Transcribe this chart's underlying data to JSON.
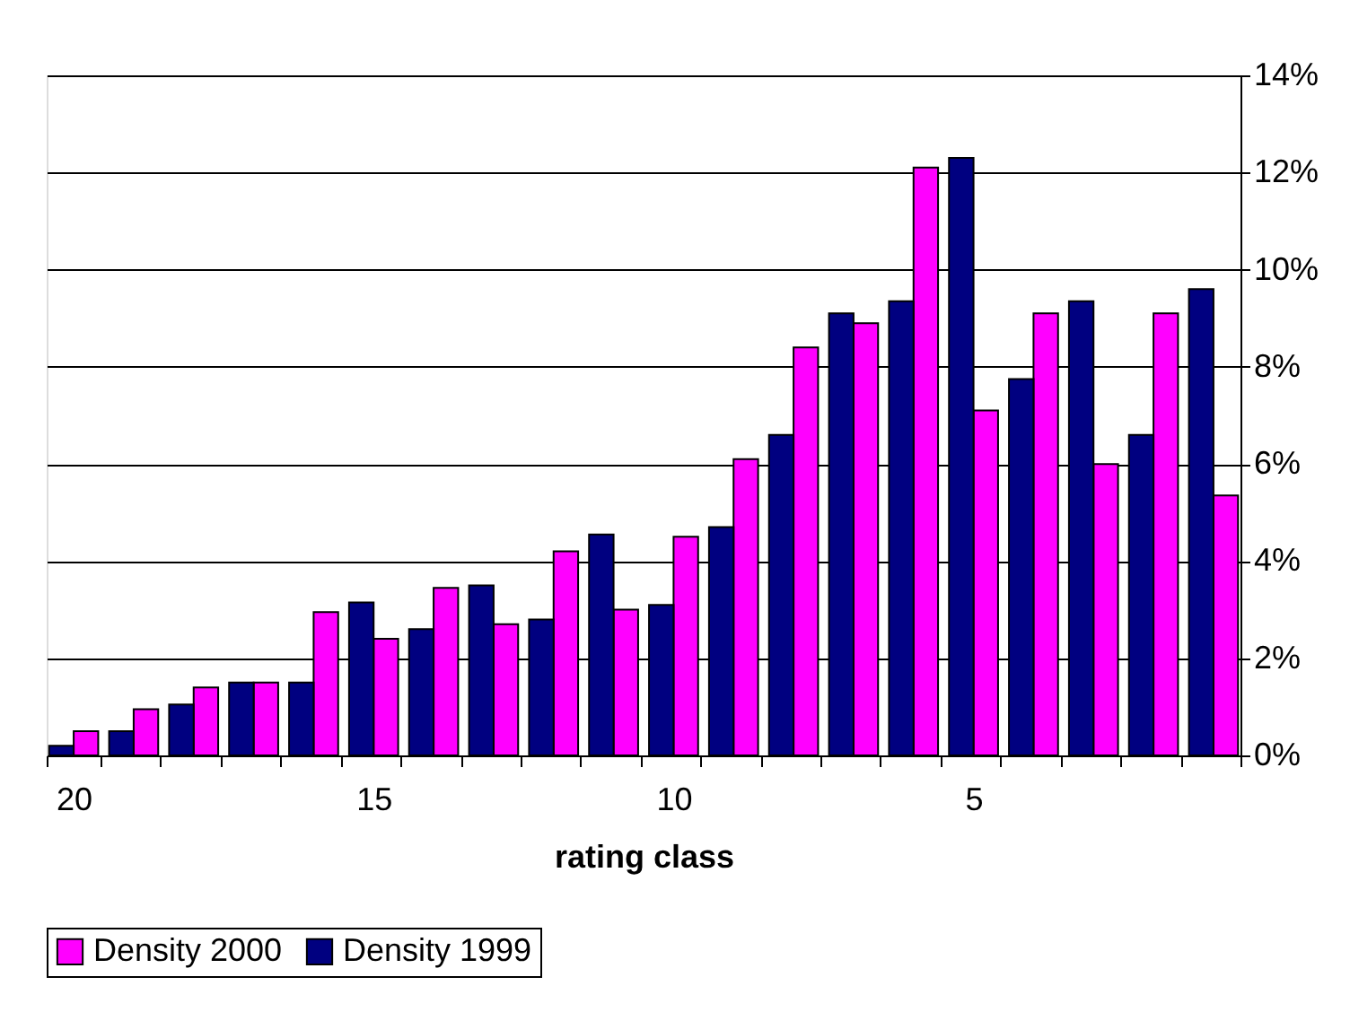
{
  "chart_data": {
    "type": "bar",
    "xlabel": "rating class",
    "categories": [
      "20",
      null,
      null,
      null,
      null,
      "15",
      null,
      null,
      null,
      null,
      "10",
      null,
      null,
      null,
      null,
      "5",
      null,
      null,
      null,
      null
    ],
    "series": [
      {
        "name": "Density 2000",
        "color": "#ff00ff",
        "values": [
          0.5,
          0.95,
          1.4,
          1.5,
          2.95,
          2.4,
          3.45,
          2.7,
          4.2,
          3.0,
          4.5,
          6.1,
          8.4,
          8.9,
          12.1,
          7.1,
          9.1,
          6.0,
          9.1,
          5.35
        ]
      },
      {
        "name": "Density 1999",
        "color": "#000080",
        "values": [
          0.2,
          0.5,
          1.05,
          1.5,
          1.5,
          3.15,
          2.6,
          3.5,
          2.8,
          4.55,
          3.1,
          4.7,
          6.6,
          9.1,
          9.35,
          12.3,
          7.75,
          9.35,
          6.6,
          9.6
        ]
      }
    ],
    "ylim": [
      0,
      14
    ],
    "yticks": [
      {
        "value": 0,
        "label": "0%"
      },
      {
        "value": 2,
        "label": "2%"
      },
      {
        "value": 4,
        "label": "4%"
      },
      {
        "value": 6,
        "label": "6%"
      },
      {
        "value": 8,
        "label": "8%"
      },
      {
        "value": 10,
        "label": "10%"
      },
      {
        "value": 12,
        "label": "12%"
      },
      {
        "value": 14,
        "label": "14%"
      }
    ],
    "grid": "y",
    "legend": "bottom"
  }
}
